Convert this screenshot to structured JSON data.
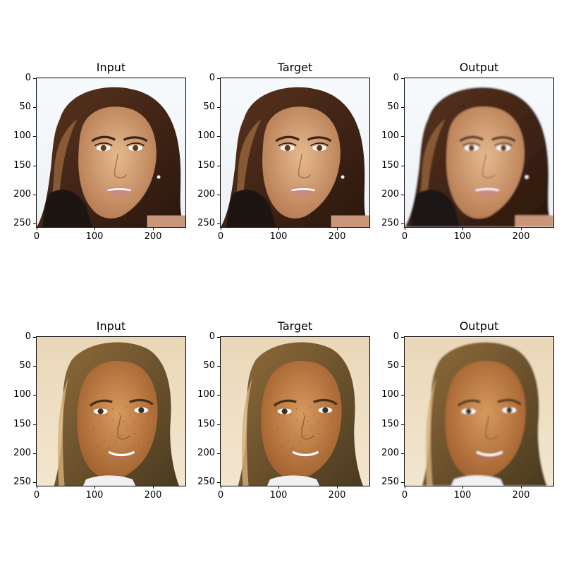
{
  "figure": {
    "rows": [
      {
        "panels": [
          {
            "title": "Input",
            "variant": "woman-dark-hair-white-bg",
            "quality": "sharp"
          },
          {
            "title": "Target",
            "variant": "woman-dark-hair-white-bg",
            "quality": "sharp"
          },
          {
            "title": "Output",
            "variant": "woman-dark-hair-white-bg",
            "quality": "smooth"
          }
        ]
      },
      {
        "panels": [
          {
            "title": "Input",
            "variant": "woman-light-hair-freckles",
            "quality": "sharp"
          },
          {
            "title": "Target",
            "variant": "woman-light-hair-freckles",
            "quality": "sharp"
          },
          {
            "title": "Output",
            "variant": "woman-light-hair-freckles",
            "quality": "smooth"
          }
        ]
      }
    ],
    "axis": {
      "y_ticks": [
        "0",
        "50",
        "100",
        "150",
        "200",
        "250"
      ],
      "x_ticks": [
        "0",
        "100",
        "200"
      ]
    }
  }
}
